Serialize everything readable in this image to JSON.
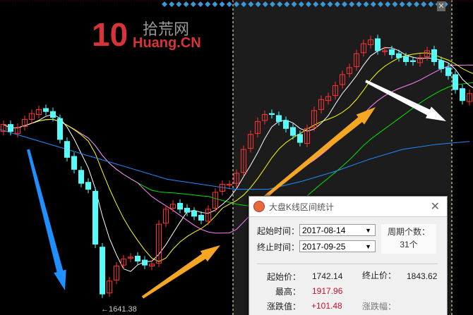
{
  "chart": {
    "low_label": "←1641.38",
    "colors": {
      "up": "#ff3232",
      "down": "#54fcfc",
      "ma5": "#ffffff",
      "ma10": "#ffff00",
      "ma20": "#ff80ff",
      "ma30": "#00e600",
      "ma60": "#1e90ff",
      "selection_bg": "#1c1c1c"
    },
    "closes": [
      1825,
      1818,
      1822,
      1830,
      1836,
      1840,
      1838,
      1832,
      1810,
      1792,
      1780,
      1766,
      1760,
      1705,
      1655,
      1668,
      1683,
      1690,
      1692,
      1688,
      1684,
      1685,
      1725,
      1740,
      1745,
      1740,
      1737,
      1733,
      1729,
      1740,
      1757,
      1765,
      1765,
      1776,
      1800,
      1815,
      1828,
      1835,
      1835,
      1828,
      1821,
      1814,
      1807,
      1821,
      1839,
      1850,
      1853,
      1864,
      1875,
      1882,
      1896,
      1906,
      1910,
      1899,
      1899,
      1895,
      1892,
      1888,
      1888,
      1892,
      1899,
      1888,
      1881,
      1874,
      1860,
      1849,
      1856,
      1860
    ],
    "opens": [
      1818,
      1825,
      1816,
      1823,
      1830,
      1835,
      1841,
      1838,
      1831,
      1808,
      1793,
      1779,
      1767,
      1758,
      1702,
      1656,
      1669,
      1684,
      1691,
      1693,
      1689,
      1683,
      1686,
      1726,
      1741,
      1746,
      1741,
      1738,
      1734,
      1728,
      1741,
      1758,
      1764,
      1766,
      1777,
      1801,
      1816,
      1829,
      1836,
      1834,
      1829,
      1822,
      1815,
      1806,
      1822,
      1840,
      1849,
      1854,
      1865,
      1876,
      1883,
      1897,
      1905,
      1911,
      1898,
      1900,
      1896,
      1893,
      1889,
      1887,
      1893,
      1900,
      1889,
      1882,
      1875,
      1861,
      1848,
      1855
    ],
    "ma60": [
      1820,
      1810,
      1800,
      1790,
      1780,
      1770,
      1765,
      1760,
      1760,
      1768,
      1778,
      1790,
      1800,
      1805,
      1808
    ],
    "selection_start_index": 33,
    "selection_end_index": 63,
    "top_markers": 40
  },
  "dialog": {
    "title": "大盘K线区间统计",
    "close": "✕",
    "start_label": "起始时间：",
    "start_value": "2017-08-14",
    "end_label": "终止时间：",
    "end_value": "2017-09-25",
    "period_label": "周期个数：",
    "period_value": "31个",
    "start_price_label": "起始价：",
    "start_price": "1742.14",
    "end_price_label": "终止价：",
    "end_price": "1843.62",
    "high_label": "最高：",
    "high_value": "1917.96",
    "change_label": "涨跌值：",
    "change_value": "+101.48",
    "change_pct_label": "涨跌幅："
  },
  "watermark": {
    "brand_cn": "拾荒网",
    "brand_en": "Huang.CN",
    "logo": "10"
  }
}
